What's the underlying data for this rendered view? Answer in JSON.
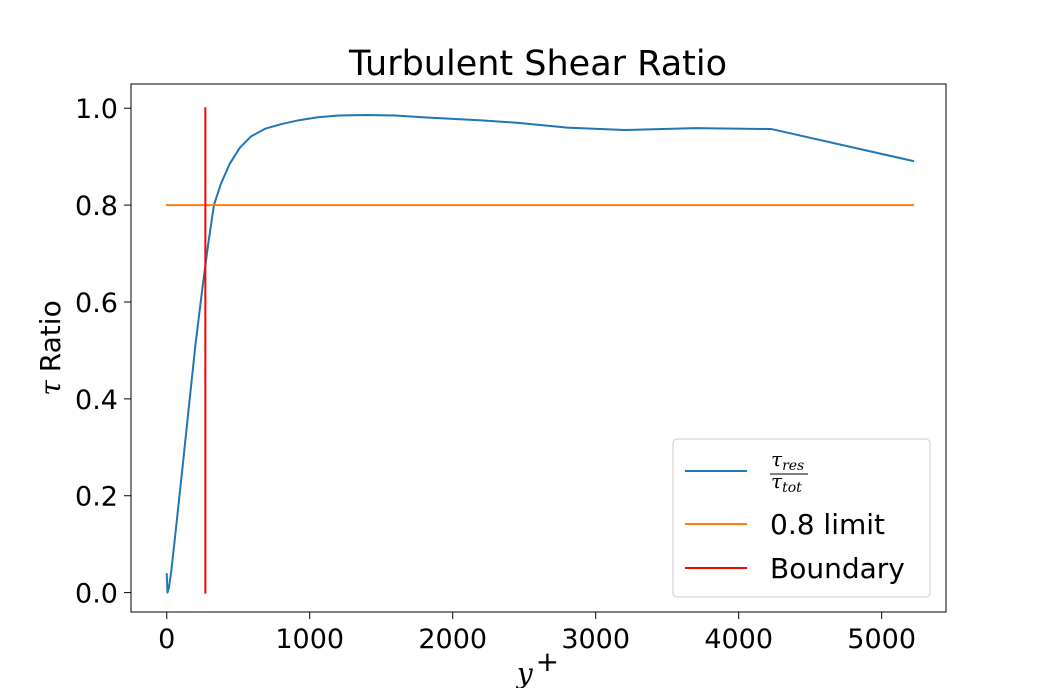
{
  "chart_data": {
    "type": "line",
    "title": "Turbulent Shear Ratio",
    "xlabel": "y+",
    "ylabel": "τ Ratio",
    "xlim": [
      -250,
      5450
    ],
    "ylim": [
      -0.04,
      1.05
    ],
    "xticks": [
      0,
      1000,
      2000,
      3000,
      4000,
      5000
    ],
    "yticks": [
      0.0,
      0.2,
      0.4,
      0.6,
      0.8,
      1.0
    ],
    "xtick_labels": [
      "0",
      "1000",
      "2000",
      "3000",
      "4000",
      "5000"
    ],
    "ytick_labels": [
      "0.0",
      "0.2",
      "0.4",
      "0.6",
      "0.8",
      "1.0"
    ],
    "grid": false,
    "legend_position": "lower-right",
    "series": [
      {
        "name": "τres / τtot",
        "color": "#1f77b4",
        "x": [
          0,
          5,
          15,
          30,
          60,
          100,
          150,
          200,
          250,
          290,
          330,
          380,
          440,
          510,
          590,
          690,
          800,
          920,
          1050,
          1200,
          1400,
          1600,
          1800,
          2000,
          2200,
          2450,
          2800,
          3200,
          3700,
          4230,
          5220
        ],
        "y": [
          0.038,
          0.0,
          0.01,
          0.04,
          0.12,
          0.23,
          0.37,
          0.51,
          0.63,
          0.72,
          0.8,
          0.845,
          0.885,
          0.918,
          0.942,
          0.958,
          0.967,
          0.975,
          0.981,
          0.985,
          0.986,
          0.985,
          0.981,
          0.978,
          0.975,
          0.97,
          0.96,
          0.955,
          0.959,
          0.957,
          0.891
        ]
      },
      {
        "name": "0.8 limit",
        "color": "#ff7f0e",
        "x": [
          0,
          5220
        ],
        "y": [
          0.8,
          0.8
        ]
      },
      {
        "name": "Boundary",
        "color": "#ff0000",
        "x": [
          270,
          270
        ],
        "y": [
          0.0,
          1.0
        ]
      }
    ]
  },
  "legend": {
    "fraction": {
      "num_base": "τ",
      "num_sub": "res",
      "den_base": "τ",
      "den_sub": "tot"
    },
    "limit_label": "0.8 limit",
    "boundary_label": "Boundary"
  },
  "axis_text": {
    "xlabel_base": "y",
    "xlabel_sup": "+",
    "ylabel_symbol": "τ",
    "ylabel_word": "Ratio"
  }
}
